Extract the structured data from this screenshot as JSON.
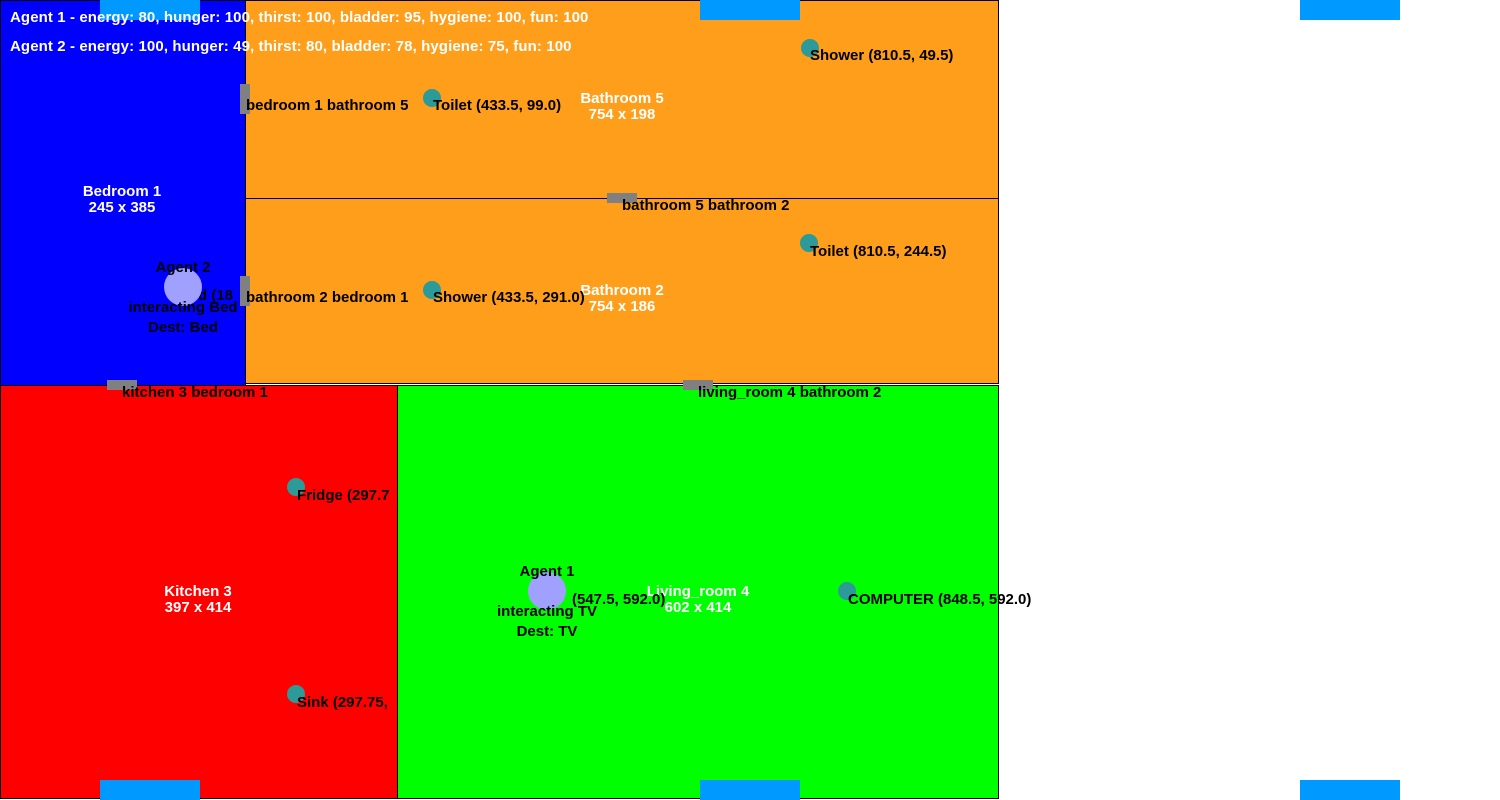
{
  "colors": {
    "bedroom": "#0000ff",
    "bathroom": "#ff9e1a",
    "kitchen": "#ff0000",
    "living_room": "#00ff00",
    "door": "#808080",
    "object": "#2b9a98",
    "agent": "#a0a0ff",
    "window": "#0099ff"
  },
  "stats": {
    "agent1": "Agent 1 - energy: 80, hunger: 100, thirst: 100, bladder: 95, hygiene: 100, fun: 100",
    "agent2": "Agent 2 - energy: 100, hunger: 49, thirst: 80, bladder: 78, hygiene: 75, fun: 100"
  },
  "rooms": {
    "bedroom1": {
      "name": "Bedroom 1",
      "size": "245 x 385"
    },
    "bathroom5": {
      "name": "Bathroom 5",
      "size": "754 x 198"
    },
    "bathroom2": {
      "name": "Bathroom 2",
      "size": "754 x 186"
    },
    "kitchen3": {
      "name": "Kitchen 3",
      "size": "397 x 414"
    },
    "living_room4": {
      "name": "Living_room 4",
      "size": "602 x 414"
    }
  },
  "doors": {
    "bedroom1_bathroom5": "bedroom 1 bathroom 5",
    "bathroom5_bathroom2": "bathroom 5 bathroom 2",
    "bathroom2_bedroom1": "bathroom 2 bedroom 1",
    "kitchen3_bedroom1": "kitchen 3 bedroom 1",
    "living4_bathroom2": "living_room 4 bathroom 2"
  },
  "objects": {
    "shower_b5": "Shower (810.5, 49.5)",
    "toilet_b5": "Toilet (433.5, 99.0)",
    "toilet_b2": "Toilet (810.5, 244.5)",
    "shower_b2": "Shower (433.5, 291.0)",
    "bed": "d (18",
    "fridge": "Fridge (297.7",
    "sink": "Sink (297.75,",
    "tv": "(547.5, 592.0)",
    "computer": "COMPUTER (848.5, 592.0)"
  },
  "agents": {
    "agent1": {
      "name": "Agent 1",
      "status": "interacting TV",
      "dest": "Dest: TV"
    },
    "agent2": {
      "name": "Agent 2",
      "status": "interacting Bed",
      "dest": "Dest: Bed"
    }
  }
}
